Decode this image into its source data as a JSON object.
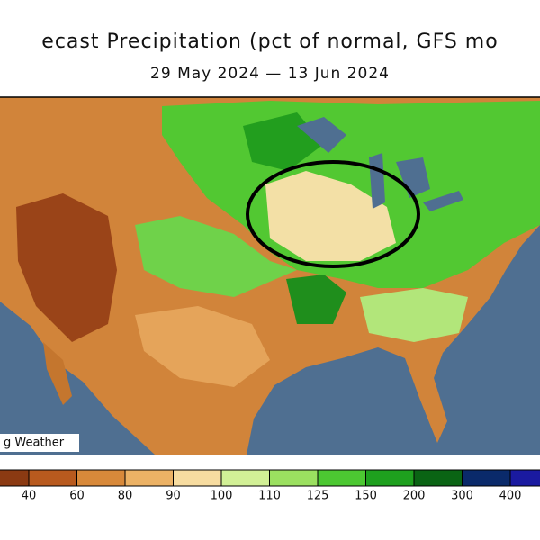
{
  "title": "ecast Precipitation (pct of normal, GFS mo",
  "subtitle": "29 May 2024 — 13 Jun 2024",
  "credit": "g Weather",
  "colorbar": {
    "ticks": [
      40,
      60,
      80,
      90,
      100,
      110,
      125,
      150,
      200,
      300,
      400
    ],
    "colors": [
      "#8b3a12",
      "#b85a1e",
      "#d8893a",
      "#ecb265",
      "#f7dca0",
      "#d2f096",
      "#9be060",
      "#4cc832",
      "#1ea01e",
      "#0a6414",
      "#0a2a6a",
      "#1a1aa0"
    ]
  }
}
